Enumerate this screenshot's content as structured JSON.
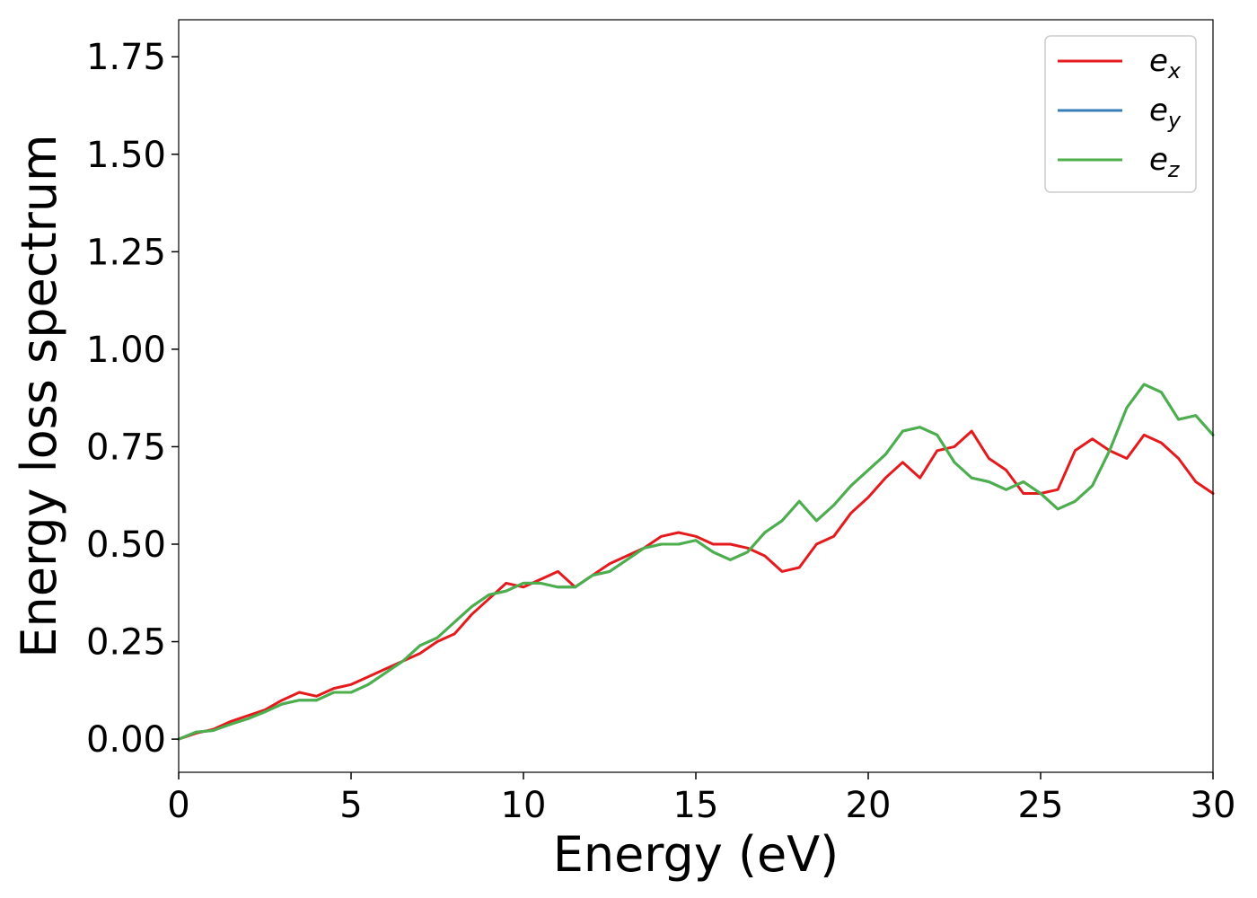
{
  "chart_data": {
    "type": "line",
    "xlabel": "Energy (eV)",
    "ylabel": "Energy loss spectrum",
    "xlim": [
      0,
      30
    ],
    "ylim": [
      -0.085,
      1.845
    ],
    "x_ticks": [
      "0",
      "5",
      "10",
      "15",
      "20",
      "25",
      "30"
    ],
    "y_ticks": [
      "0.00",
      "0.25",
      "0.50",
      "0.75",
      "1.00",
      "1.25",
      "1.50",
      "1.75"
    ],
    "x_tick_values": [
      0,
      5,
      10,
      15,
      20,
      25,
      30
    ],
    "y_tick_values": [
      0,
      0.25,
      0.5,
      0.75,
      1.0,
      1.25,
      1.5,
      1.75
    ],
    "grid": false,
    "legend_position": "top-right",
    "series": [
      {
        "name": "e",
        "sub": "x",
        "color": "#e41a1c",
        "x": [
          0,
          0.5,
          1,
          1.5,
          2,
          2.5,
          3,
          3.5,
          4,
          4.5,
          5,
          5.5,
          6,
          6.5,
          7,
          7.5,
          8,
          8.5,
          9,
          9.5,
          10,
          10.5,
          11,
          11.5,
          12,
          12.5,
          13,
          13.5,
          14,
          14.5,
          15,
          15.5,
          16,
          16.5,
          17,
          17.5,
          18,
          18.5,
          19,
          19.5,
          20,
          20.5,
          21,
          21.5,
          22,
          22.5,
          23,
          23.5,
          24,
          24.5,
          25,
          25.5,
          26,
          26.5,
          27,
          27.5,
          28,
          28.5,
          29,
          29.5,
          30
        ],
        "y": [
          0.0,
          0.015,
          0.025,
          0.045,
          0.06,
          0.075,
          0.1,
          0.12,
          0.11,
          0.13,
          0.14,
          0.16,
          0.18,
          0.2,
          0.22,
          0.25,
          0.27,
          0.32,
          0.36,
          0.4,
          0.39,
          0.41,
          0.43,
          0.39,
          0.42,
          0.45,
          0.47,
          0.49,
          0.52,
          0.53,
          0.52,
          0.5,
          0.5,
          0.49,
          0.47,
          0.43,
          0.44,
          0.5,
          0.52,
          0.58,
          0.62,
          0.67,
          0.71,
          0.67,
          0.74,
          0.75,
          0.79,
          0.72,
          0.69,
          0.63,
          0.63,
          0.64,
          0.74,
          0.77,
          0.74,
          0.72,
          0.78,
          0.76,
          0.72,
          0.66,
          0.63
        ]
      },
      {
        "name": "e",
        "sub": "y",
        "color": "#377eb8",
        "x": [
          0,
          0.5,
          1,
          1.5,
          2,
          2.5,
          3,
          3.5,
          4,
          4.5,
          5,
          5.5,
          6,
          6.5,
          7,
          7.5,
          8,
          8.5,
          9,
          9.5,
          10,
          10.5,
          11,
          11.5,
          12,
          12.5,
          13,
          13.5,
          14,
          14.5,
          15,
          15.5,
          16,
          16.5,
          17,
          17.5,
          18,
          18.5,
          19,
          19.5,
          20,
          20.5,
          21,
          21.5,
          22,
          22.5,
          23,
          23.5,
          24,
          24.5,
          25,
          25.5,
          26,
          26.5,
          27,
          27.5,
          28,
          28.5,
          29,
          29.5,
          30
        ],
        "y": [
          0.0,
          0.018,
          0.022,
          0.038,
          0.052,
          0.07,
          0.09,
          0.1,
          0.1,
          0.12,
          0.12,
          0.14,
          0.17,
          0.2,
          0.24,
          0.26,
          0.3,
          0.34,
          0.37,
          0.38,
          0.4,
          0.4,
          0.39,
          0.39,
          0.42,
          0.43,
          0.46,
          0.49,
          0.5,
          0.5,
          0.51,
          0.48,
          0.46,
          0.48,
          0.53,
          0.56,
          0.61,
          0.56,
          0.6,
          0.65,
          0.69,
          0.73,
          0.79,
          0.8,
          0.78,
          0.71,
          0.67,
          0.66,
          0.64,
          0.66,
          0.63,
          0.59,
          0.61,
          0.65,
          0.74,
          0.85,
          0.91,
          0.89,
          0.82,
          0.83,
          0.78
        ]
      },
      {
        "name": "e",
        "sub": "z",
        "color": "#4daf4a",
        "x": [
          0,
          0.5,
          1,
          1.5,
          2,
          2.5,
          3,
          3.5,
          4,
          4.5,
          5,
          5.5,
          6,
          6.5,
          7,
          7.5,
          8,
          8.5,
          9,
          9.5,
          10,
          10.5,
          11,
          11.5,
          12,
          12.5,
          13,
          13.5,
          14,
          14.5,
          15,
          15.5,
          16,
          16.5,
          17,
          17.5,
          18,
          18.5,
          19,
          19.5,
          20,
          20.5,
          21,
          21.5,
          22,
          22.5,
          23,
          23.5,
          24,
          24.5,
          25,
          25.5,
          26,
          26.5,
          27,
          27.5,
          28,
          28.5,
          29,
          29.5,
          30
        ],
        "y": [
          0.0,
          0.018,
          0.022,
          0.038,
          0.052,
          0.07,
          0.09,
          0.1,
          0.1,
          0.12,
          0.12,
          0.14,
          0.17,
          0.2,
          0.24,
          0.26,
          0.3,
          0.34,
          0.37,
          0.38,
          0.4,
          0.4,
          0.39,
          0.39,
          0.42,
          0.43,
          0.46,
          0.49,
          0.5,
          0.5,
          0.51,
          0.48,
          0.46,
          0.48,
          0.53,
          0.56,
          0.61,
          0.56,
          0.6,
          0.65,
          0.69,
          0.73,
          0.79,
          0.8,
          0.78,
          0.71,
          0.67,
          0.66,
          0.64,
          0.66,
          0.63,
          0.59,
          0.61,
          0.65,
          0.74,
          0.85,
          0.91,
          0.89,
          0.82,
          0.83,
          0.78
        ]
      }
    ]
  }
}
